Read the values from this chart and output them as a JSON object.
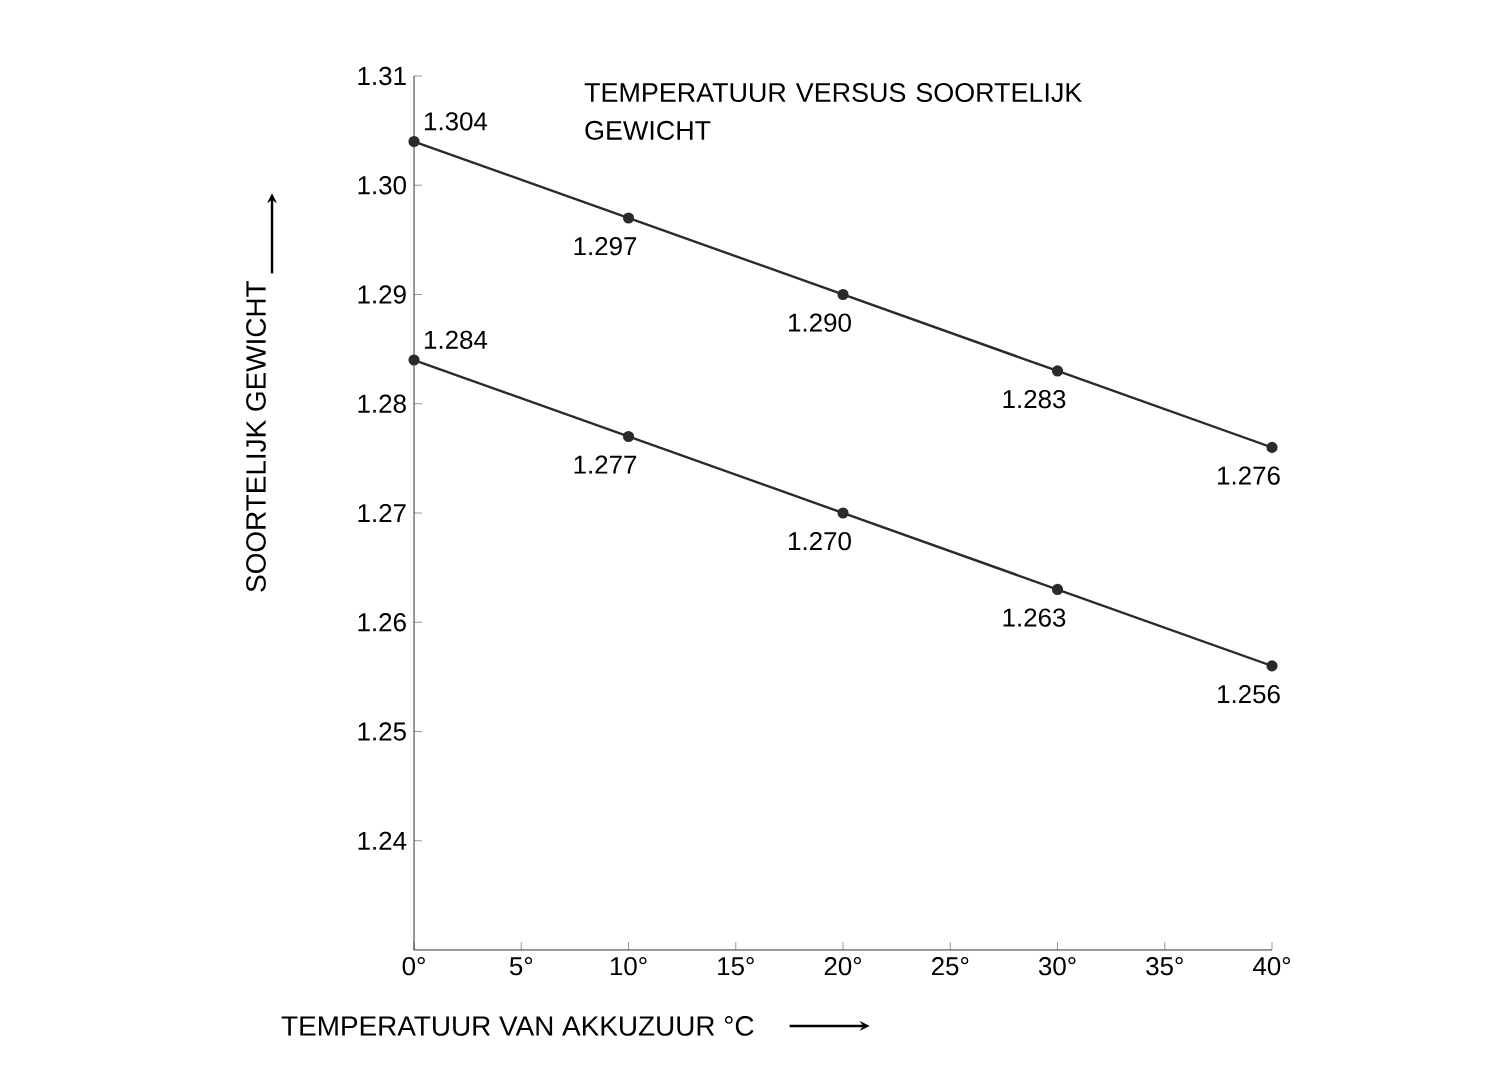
{
  "chart_data": {
    "type": "line",
    "title": "TEMPERATUUR VERSUS SOORTELIJK GEWICHT",
    "xlabel": "TEMPERATUUR VAN AKKUZUUR °C",
    "ylabel": "SOORTELIJK GEWICHT",
    "x": [
      0,
      10,
      20,
      30,
      40
    ],
    "series": [
      {
        "color": "#2b2b2b",
        "values": [
          1.304,
          1.297,
          1.29,
          1.283,
          1.276
        ],
        "value_labels": [
          "1.304",
          "1.297",
          "1.290",
          "1.283",
          "1.276"
        ]
      },
      {
        "color": "#2b2b2b",
        "values": [
          1.284,
          1.277,
          1.27,
          1.263,
          1.256
        ],
        "value_labels": [
          "1.284",
          "1.277",
          "1.270",
          "1.263",
          "1.256"
        ]
      }
    ],
    "xlim": [
      0,
      40
    ],
    "ylim": [
      1.23,
      1.31
    ],
    "xticks": [
      {
        "value": 0,
        "label": "0°"
      },
      {
        "value": 5,
        "label": "5°"
      },
      {
        "value": 10,
        "label": "10°"
      },
      {
        "value": 15,
        "label": "15°"
      },
      {
        "value": 20,
        "label": "20°"
      },
      {
        "value": 25,
        "label": "25°"
      },
      {
        "value": 30,
        "label": "30°"
      },
      {
        "value": 35,
        "label": "35°"
      },
      {
        "value": 40,
        "label": "40°"
      }
    ],
    "yticks": [
      1.24,
      1.25,
      1.26,
      1.27,
      1.28,
      1.29,
      {
        "value": 1.3,
        "label": "1.30"
      },
      1.31
    ],
    "marker": "circle",
    "line_style": "solid"
  }
}
